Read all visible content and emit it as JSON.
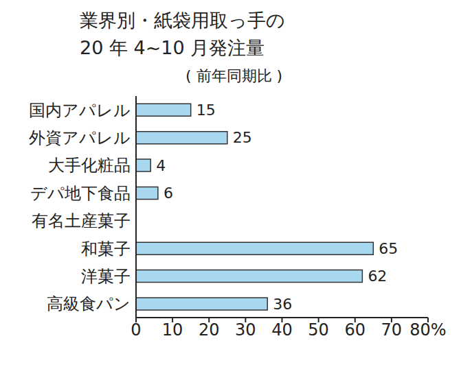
{
  "chart_data": {
    "type": "bar",
    "title": "業界別・紙袋用取っ手の\n20 年 4~10 月発注量",
    "subtitle": "( 前年同期比 )",
    "orientation": "horizontal",
    "categories": [
      "国内アパレル",
      "外資アパレル",
      "大手化粧品",
      "デパ地下食品",
      "有名土産菓子",
      "和菓子",
      "洋菓子",
      "高級食パン"
    ],
    "values": [
      15,
      25,
      4,
      6,
      0,
      65,
      62,
      36
    ],
    "color": "#a8d8ef",
    "xlim": [
      0,
      80
    ],
    "xticks": [
      0,
      10,
      20,
      30,
      40,
      50,
      60,
      70,
      {
        "value": 80,
        "label": "80%"
      }
    ],
    "grid": false,
    "data_labels": true
  }
}
